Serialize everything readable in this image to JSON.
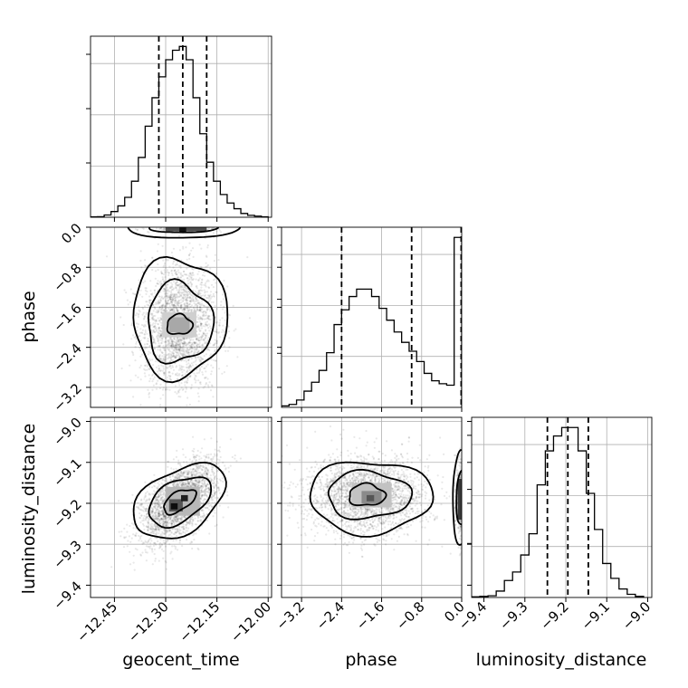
{
  "chart_data": {
    "type": "corner",
    "parameters": [
      "geocent_time",
      "phase",
      "luminosity_distance"
    ],
    "axis_labels": {
      "x": [
        "geocent_time",
        "phase",
        "luminosity_distance"
      ],
      "y": [
        "",
        "phase",
        "luminosity_distance"
      ]
    },
    "ranges": {
      "geocent_time": [
        -12.52,
        -11.99
      ],
      "phase": [
        -3.6,
        0.0
      ],
      "luminosity_distance": [
        -9.43,
        -8.99
      ]
    },
    "ticks": {
      "geocent_time": [
        -12.45,
        -12.3,
        -12.15,
        -12.0
      ],
      "geocent_time_labels": [
        "−12.45",
        "−12.30",
        "−12.15",
        "−12.00"
      ],
      "phase_x": [
        -3.2,
        -2.4,
        -1.6,
        -0.8,
        0.0
      ],
      "phase_x_labels": [
        "−3.2",
        "−2.4",
        "−1.6",
        "−0.8",
        "0.0"
      ],
      "phase_y": [
        0.0,
        -0.8,
        -1.6,
        -2.4,
        -3.2
      ],
      "phase_y_labels": [
        "0.0",
        "−0.8",
        "−1.6",
        "−2.4",
        "−3.2"
      ],
      "luminosity_distance_x": [
        -9.4,
        -9.3,
        -9.2,
        -9.1,
        -9.0
      ],
      "luminosity_distance_x_labels": [
        "−9.4",
        "−9.3",
        "−9.2",
        "−9.1",
        "−9.0"
      ],
      "luminosity_distance_y": [
        -9.0,
        -9.1,
        -9.2,
        -9.3,
        -9.4
      ],
      "luminosity_distance_y_labels": [
        "−9.0",
        "−9.1",
        "−9.2",
        "−9.3",
        "−9.4"
      ]
    },
    "histograms": {
      "geocent_time": {
        "edges": [
          -12.52,
          -12.5,
          -12.48,
          -12.46,
          -12.44,
          -12.42,
          -12.4,
          -12.38,
          -12.36,
          -12.34,
          -12.32,
          -12.3,
          -12.28,
          -12.26,
          -12.24,
          -12.22,
          -12.2,
          -12.18,
          -12.16,
          -12.14,
          -12.12,
          -12.1,
          -12.08,
          -12.06,
          -12.04,
          -12.02,
          -12.0
        ],
        "counts": [
          0.2,
          0.3,
          1.2,
          3.0,
          6.0,
          10.5,
          19.0,
          31.5,
          48.0,
          63.0,
          74.0,
          83.0,
          88.0,
          90.0,
          83.0,
          63.0,
          44.0,
          29.0,
          19.0,
          12.0,
          7.5,
          4.5,
          2.0,
          1.0,
          0.6,
          0.2
        ],
        "quantiles": [
          -12.32,
          -12.25,
          -12.18
        ]
      },
      "phase": {
        "edges": [
          -3.6,
          -3.45,
          -3.3,
          -3.15,
          -3.0,
          -2.85,
          -2.7,
          -2.55,
          -2.4,
          -2.25,
          -2.1,
          -1.95,
          -1.8,
          -1.65,
          -1.5,
          -1.35,
          -1.2,
          -1.05,
          -0.9,
          -0.75,
          -0.6,
          -0.45,
          -0.3,
          -0.15,
          0.0
        ],
        "counts": [
          1,
          2,
          5,
          11,
          17,
          25,
          37,
          56,
          66,
          75,
          80,
          80,
          75,
          67,
          59,
          51,
          44,
          38,
          31,
          23,
          18,
          16,
          15,
          115
        ],
        "quantiles": [
          -2.4,
          -1.0,
          -0.01
        ]
      },
      "luminosity_distance": {
        "edges": [
          -9.43,
          -9.41,
          -9.39,
          -9.37,
          -9.35,
          -9.33,
          -9.31,
          -9.29,
          -9.27,
          -9.25,
          -9.23,
          -9.21,
          -9.19,
          -9.17,
          -9.15,
          -9.13,
          -9.11,
          -9.09,
          -9.07,
          -9.05,
          -9.03,
          -9.01
        ],
        "counts": [
          0.3,
          0.5,
          0.8,
          3.0,
          8.0,
          12.0,
          20.0,
          30.0,
          53.0,
          69.0,
          76.0,
          80.0,
          80.0,
          69.0,
          49.0,
          32.0,
          16.0,
          9.0,
          4.0,
          1.5,
          0.5
        ],
        "quantiles": [
          -9.245,
          -9.195,
          -9.145
        ]
      }
    },
    "joint_modes": {
      "phase_vs_geocent_time": {
        "center": [
          -12.26,
          -1.95
        ],
        "secondary_mode": [
          -12.25,
          0.0
        ]
      },
      "luminosity_distance_vs_geocent_time": {
        "center": [
          -12.26,
          -9.195
        ],
        "correlation": "positive"
      },
      "luminosity_distance_vs_phase": {
        "center": [
          -1.9,
          -9.18
        ],
        "secondary_mode": [
          0.0,
          -9.19
        ]
      }
    },
    "grid": true
  }
}
